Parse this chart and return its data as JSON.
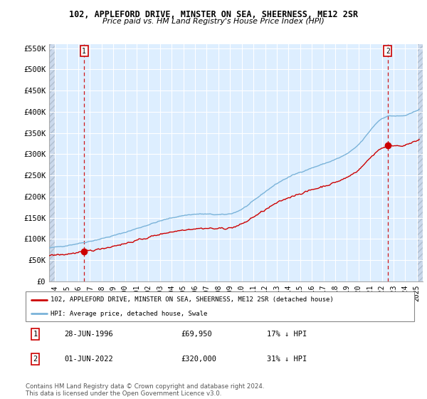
{
  "title": "102, APPLEFORD DRIVE, MINSTER ON SEA, SHEERNESS, ME12 2SR",
  "subtitle": "Price paid vs. HM Land Registry's House Price Index (HPI)",
  "legend_line1": "102, APPLEFORD DRIVE, MINSTER ON SEA, SHEERNESS, ME12 2SR (detached house)",
  "legend_line2": "HPI: Average price, detached house, Swale",
  "sale1_date": "28-JUN-1996",
  "sale1_price": 69950,
  "sale1_label": "17% ↓ HPI",
  "sale2_date": "01-JUN-2022",
  "sale2_price": 320000,
  "sale2_label": "31% ↓ HPI",
  "footer": "Contains HM Land Registry data © Crown copyright and database right 2024.\nThis data is licensed under the Open Government Licence v3.0.",
  "line_color_red": "#cc0000",
  "line_color_blue": "#7ab3d9",
  "plot_bg": "#ddeeff",
  "grid_color": "#ffffff",
  "hatch_color": "#c0cce0",
  "ylim": [
    0,
    560000
  ],
  "yticks": [
    0,
    50000,
    100000,
    150000,
    200000,
    250000,
    300000,
    350000,
    400000,
    450000,
    500000,
    550000
  ],
  "ytick_labels": [
    "£0",
    "£50K",
    "£100K",
    "£150K",
    "£200K",
    "£250K",
    "£300K",
    "£350K",
    "£400K",
    "£450K",
    "£500K",
    "£550K"
  ],
  "xmin": 1993.5,
  "xmax": 2025.5,
  "sale1_year": 1996.5,
  "sale2_year": 2022.5
}
